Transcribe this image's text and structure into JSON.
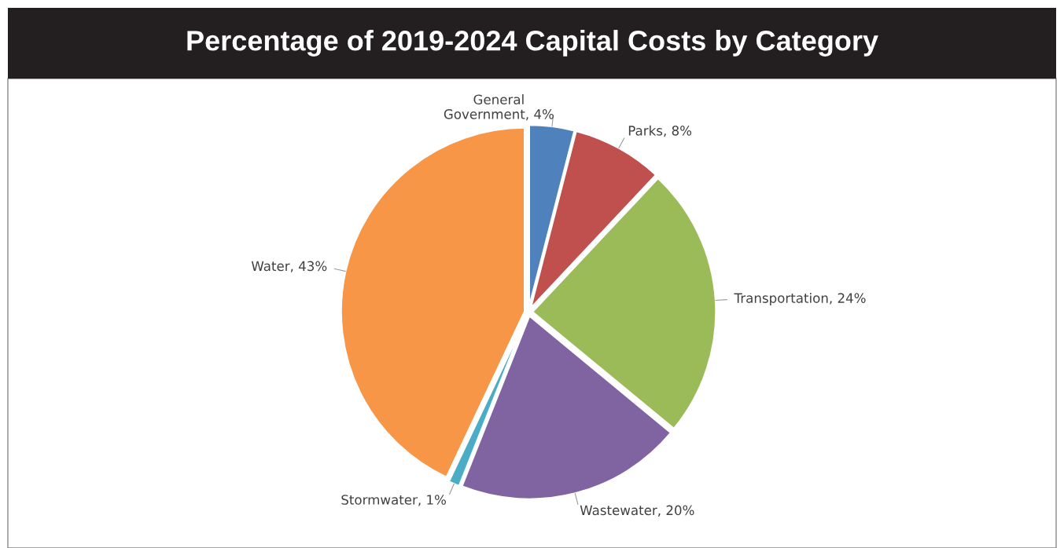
{
  "chart_data": {
    "type": "pie",
    "title": "Percentage of 2019-2024 Capital Costs by Category",
    "categories": [
      "General Government",
      "Parks",
      "Transportation",
      "Wastewater",
      "Stormwater",
      "Water"
    ],
    "values": [
      4,
      8,
      24,
      20,
      1,
      43
    ],
    "value_labels": [
      "4%",
      "8%",
      "24%",
      "20%",
      "1%",
      "43%"
    ],
    "colors": [
      "#4f81bd",
      "#c0504d",
      "#9bbb59",
      "#8064a2",
      "#4bacc6",
      "#f79646"
    ],
    "legend": false
  }
}
